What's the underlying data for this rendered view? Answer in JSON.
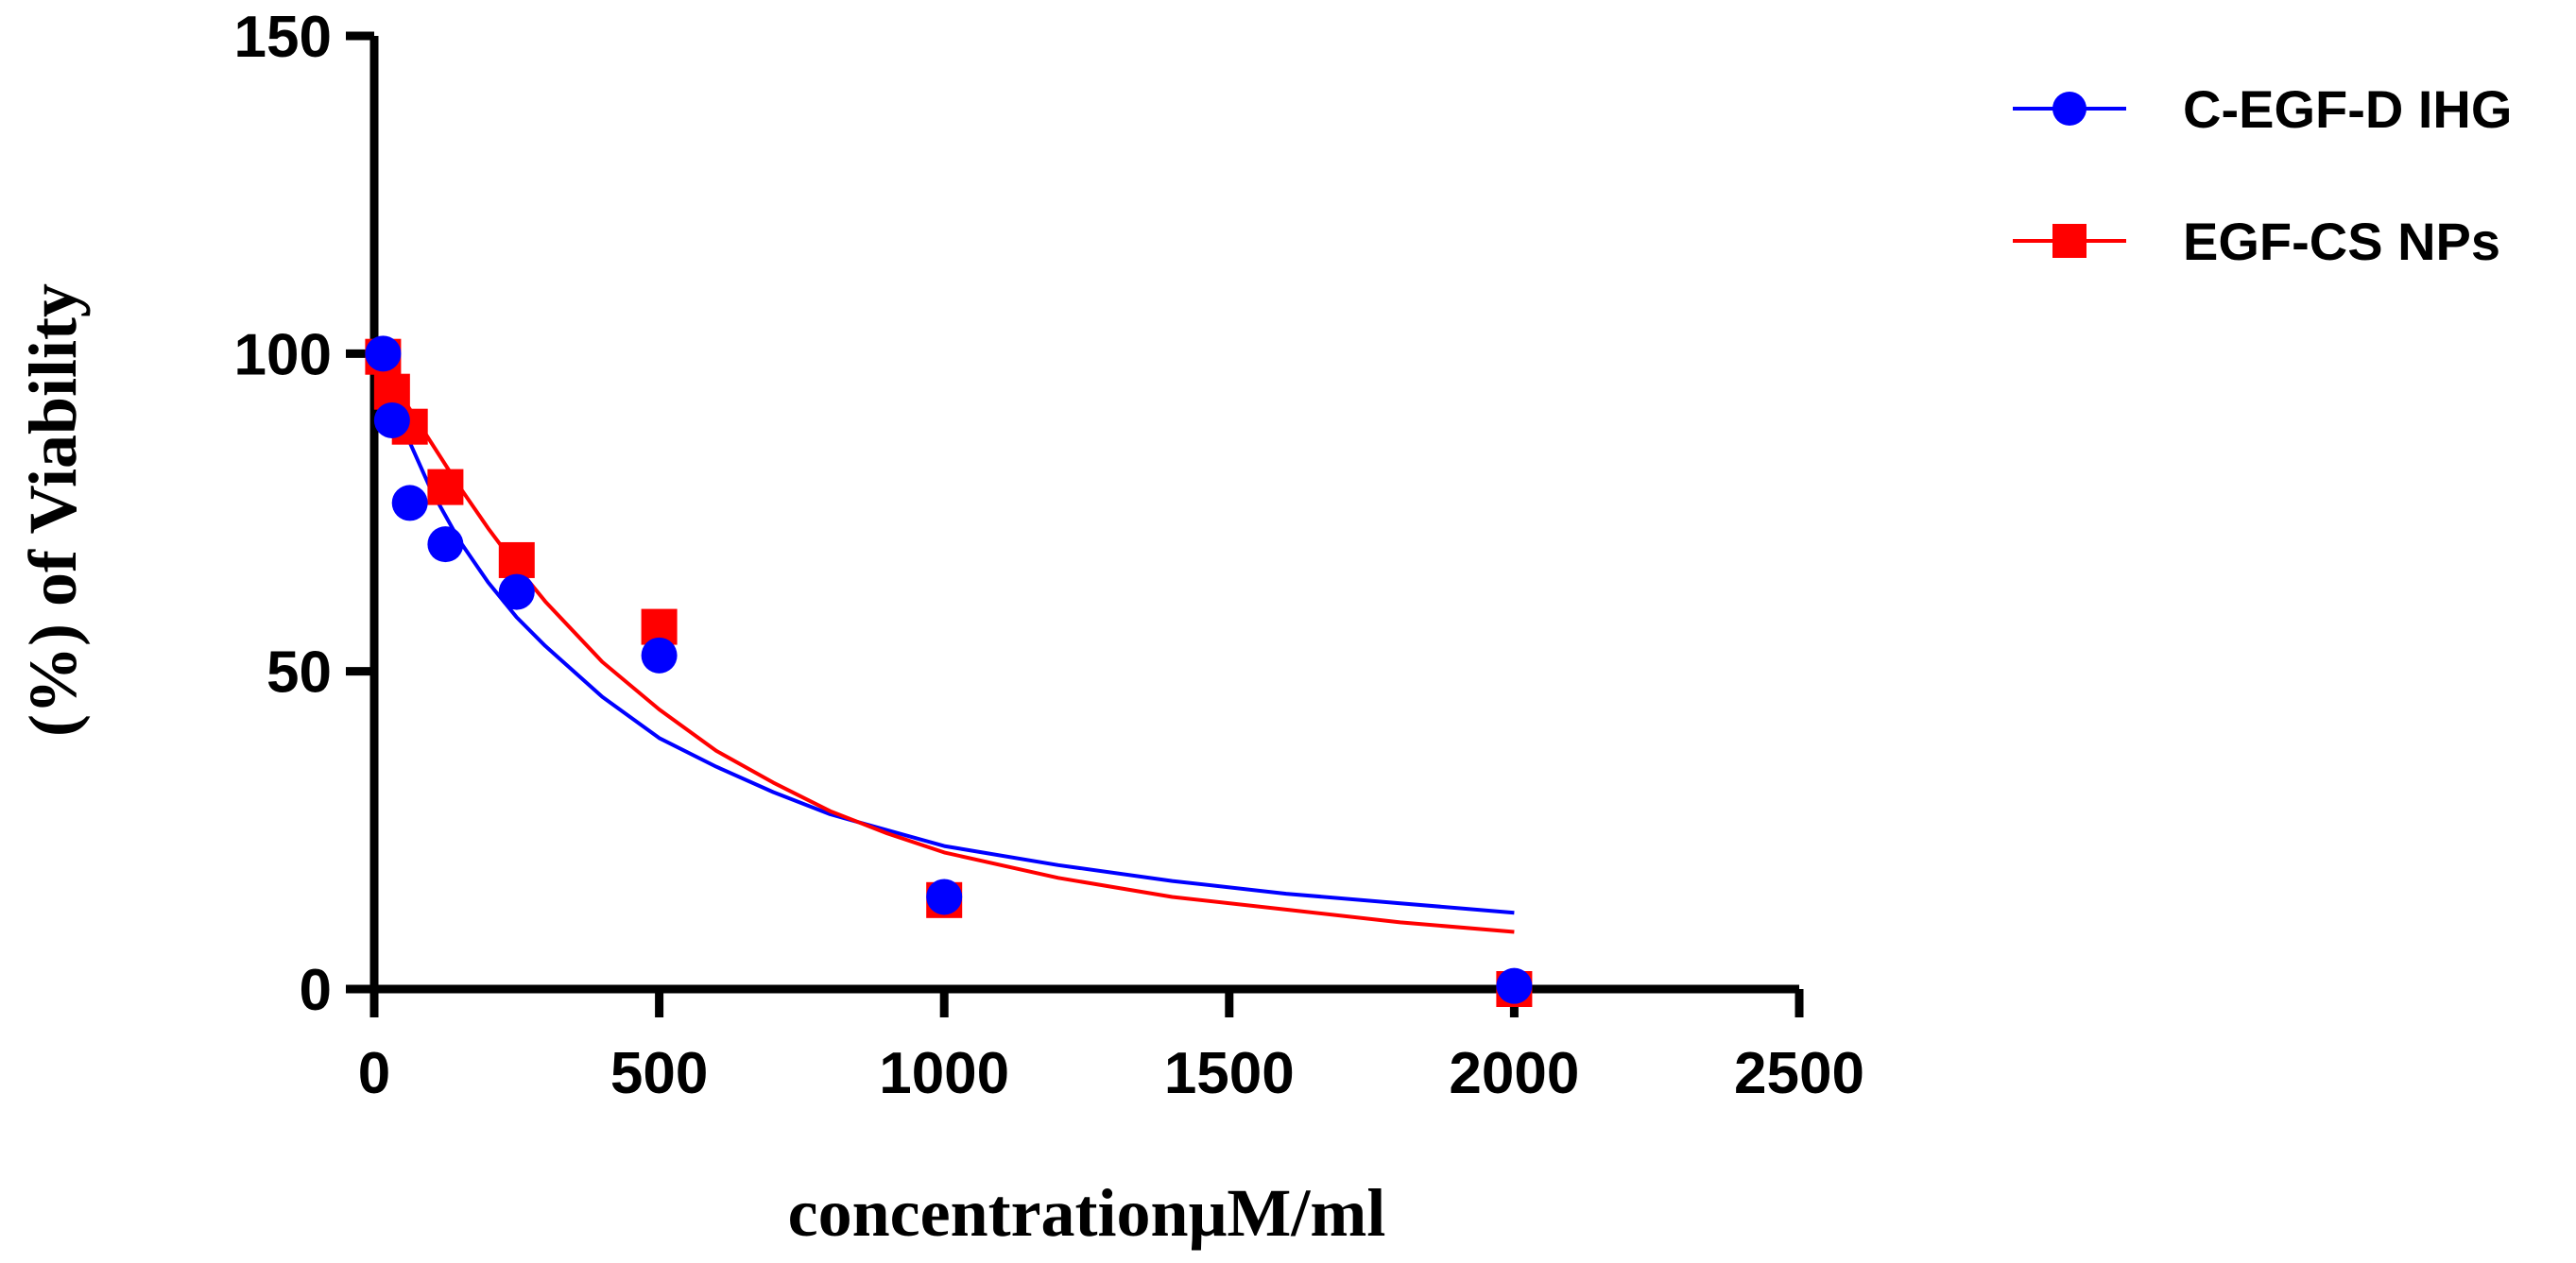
{
  "chart_data": {
    "type": "scatter",
    "title": "",
    "xlabel": "concentrationμM/ml",
    "ylabel": "(%) of Viability",
    "xlim": [
      0,
      2500
    ],
    "ylim": [
      0,
      150
    ],
    "xticks": [
      0,
      500,
      1000,
      1500,
      2000,
      2500
    ],
    "yticks": [
      0,
      50,
      100,
      150
    ],
    "xtick_labels": [
      "0",
      "500",
      "1000",
      "1500",
      "2000",
      "2500"
    ],
    "ytick_labels": [
      "0",
      "50",
      "100",
      "150"
    ],
    "grid": false,
    "legend_position": "top-right outside",
    "series": [
      {
        "name": "C-EGF-D IHG",
        "color": "#0000ff",
        "marker": "circle",
        "points": [
          {
            "x": 15.6,
            "y": 100
          },
          {
            "x": 31.25,
            "y": 89.5
          },
          {
            "x": 62.5,
            "y": 76.5
          },
          {
            "x": 125,
            "y": 70
          },
          {
            "x": 250,
            "y": 62.5
          },
          {
            "x": 500,
            "y": 52.5
          },
          {
            "x": 1000,
            "y": 14.5
          },
          {
            "x": 2000,
            "y": 0.5
          }
        ],
        "fit_curve": [
          {
            "x": 15.6,
            "y": 97.5
          },
          {
            "x": 50,
            "y": 88.5
          },
          {
            "x": 100,
            "y": 78.5
          },
          {
            "x": 150,
            "y": 70.5
          },
          {
            "x": 200,
            "y": 64
          },
          {
            "x": 250,
            "y": 58.5
          },
          {
            "x": 300,
            "y": 54
          },
          {
            "x": 400,
            "y": 46
          },
          {
            "x": 500,
            "y": 39.5
          },
          {
            "x": 600,
            "y": 35
          },
          {
            "x": 700,
            "y": 31
          },
          {
            "x": 800,
            "y": 27.5
          },
          {
            "x": 900,
            "y": 25
          },
          {
            "x": 1000,
            "y": 22.5
          },
          {
            "x": 1200,
            "y": 19.5
          },
          {
            "x": 1400,
            "y": 17
          },
          {
            "x": 1600,
            "y": 15
          },
          {
            "x": 1800,
            "y": 13.5
          },
          {
            "x": 2000,
            "y": 12
          }
        ]
      },
      {
        "name": "EGF-CS NPs",
        "color": "#ff0000",
        "marker": "square",
        "points": [
          {
            "x": 15.6,
            "y": 99.5
          },
          {
            "x": 31.25,
            "y": 94
          },
          {
            "x": 62.5,
            "y": 88.5
          },
          {
            "x": 125,
            "y": 79
          },
          {
            "x": 250,
            "y": 67.5
          },
          {
            "x": 500,
            "y": 57
          },
          {
            "x": 1000,
            "y": 14
          },
          {
            "x": 2000,
            "y": 0
          }
        ],
        "fit_curve": [
          {
            "x": 15.6,
            "y": 98
          },
          {
            "x": 50,
            "y": 93
          },
          {
            "x": 100,
            "y": 86
          },
          {
            "x": 150,
            "y": 79
          },
          {
            "x": 200,
            "y": 72.5
          },
          {
            "x": 250,
            "y": 66.5
          },
          {
            "x": 300,
            "y": 61
          },
          {
            "x": 400,
            "y": 51.5
          },
          {
            "x": 500,
            "y": 44
          },
          {
            "x": 600,
            "y": 37.5
          },
          {
            "x": 700,
            "y": 32.5
          },
          {
            "x": 800,
            "y": 28
          },
          {
            "x": 900,
            "y": 24.5
          },
          {
            "x": 1000,
            "y": 21.5
          },
          {
            "x": 1200,
            "y": 17.5
          },
          {
            "x": 1400,
            "y": 14.5
          },
          {
            "x": 1600,
            "y": 12.5
          },
          {
            "x": 1800,
            "y": 10.5
          },
          {
            "x": 2000,
            "y": 9
          }
        ]
      }
    ]
  }
}
